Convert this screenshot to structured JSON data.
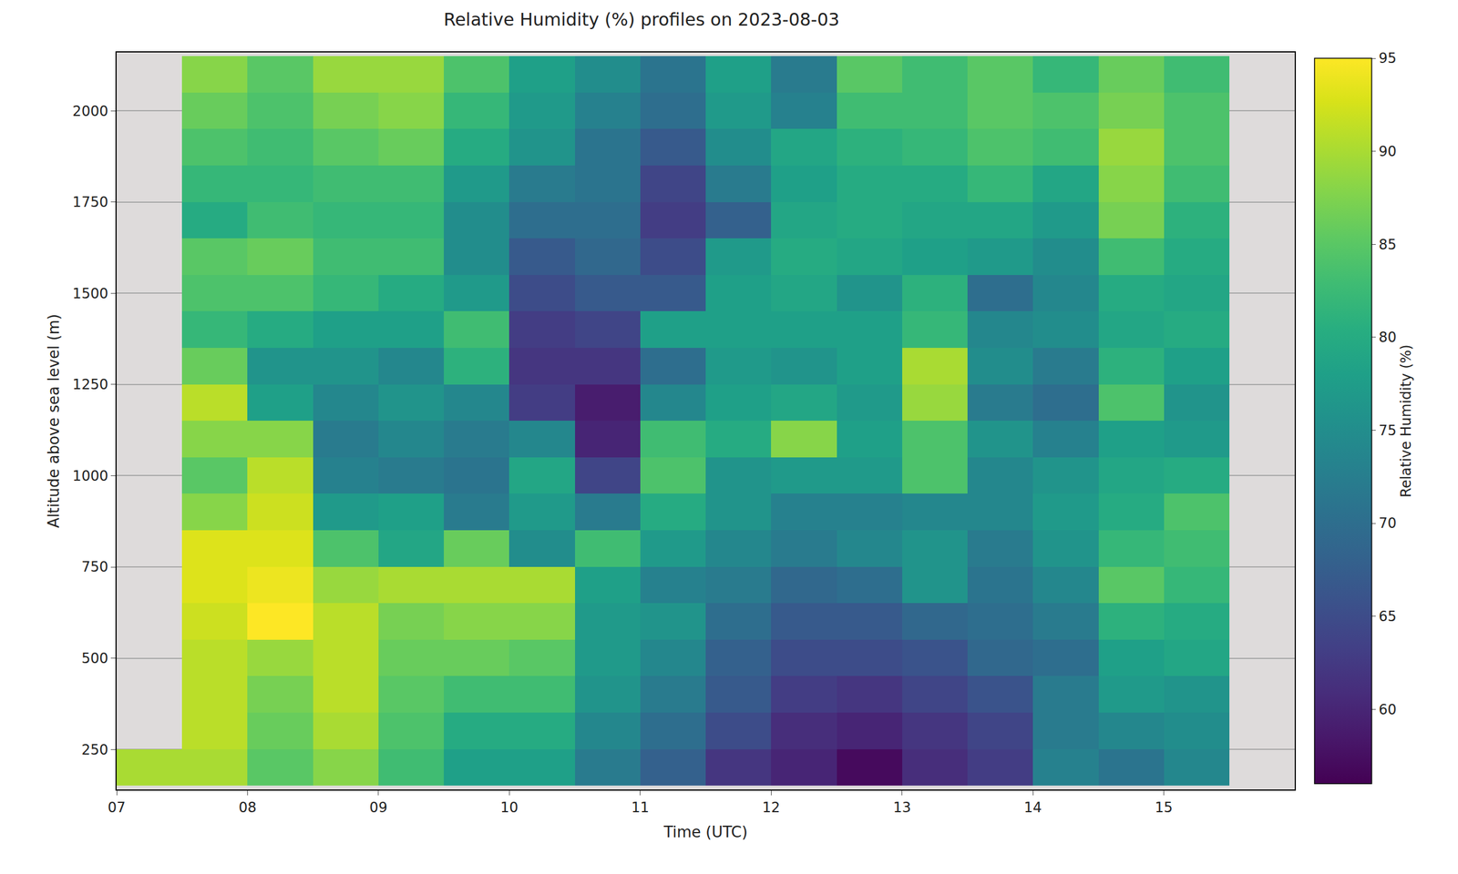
{
  "chart_data": {
    "type": "heatmap",
    "title": "Relative Humidity (%) profiles on 2023-08-03",
    "x_label": "Time (UTC)",
    "y_label": "Altitude above sea level (m)",
    "colorbar_label": "Relative Humidity (%)",
    "x": [
      7.25,
      7.75,
      8.25,
      8.75,
      9.25,
      9.75,
      10.25,
      10.75,
      11.25,
      11.75,
      12.25,
      12.75,
      13.25,
      13.75,
      14.25,
      14.75,
      15.25
    ],
    "y": [
      200,
      300,
      400,
      500,
      600,
      700,
      800,
      900,
      1000,
      1100,
      1200,
      1300,
      1400,
      1500,
      1600,
      1700,
      1800,
      1900,
      2000,
      2100
    ],
    "z": [
      [
        90,
        90,
        85,
        88,
        83,
        78,
        78,
        72,
        68,
        62,
        60,
        57,
        61,
        63,
        73,
        71,
        74
      ],
      [
        null,
        91,
        86,
        90,
        84,
        80,
        80,
        74,
        70,
        65,
        61,
        60,
        62,
        64,
        72,
        74,
        75
      ],
      [
        null,
        91,
        87,
        91,
        85,
        83,
        83,
        76,
        72,
        67,
        63,
        62,
        64,
        66,
        72,
        77,
        76
      ],
      [
        null,
        91,
        89,
        91,
        86,
        86,
        85,
        77,
        74,
        68,
        65,
        65,
        66,
        69,
        70,
        78,
        79
      ],
      [
        null,
        92,
        95,
        91,
        87,
        88,
        88,
        77,
        76,
        70,
        67,
        67,
        69,
        70,
        72,
        81,
        80
      ],
      [
        null,
        93,
        94,
        89,
        90,
        90,
        90,
        78,
        73,
        72,
        69,
        70,
        76,
        71,
        74,
        85,
        82
      ],
      [
        null,
        93,
        93,
        84,
        79,
        86,
        75,
        83,
        77,
        74,
        72,
        74,
        76,
        72,
        76,
        82,
        83
      ],
      [
        null,
        88,
        92,
        77,
        78,
        72,
        77,
        72,
        80,
        76,
        73,
        73,
        74,
        74,
        77,
        80,
        84
      ],
      [
        null,
        85,
        91,
        73,
        72,
        71,
        79,
        64,
        84,
        76,
        77,
        77,
        84,
        74,
        76,
        79,
        80
      ],
      [
        null,
        88,
        88,
        72,
        74,
        72,
        74,
        60,
        83,
        80,
        88,
        78,
        84,
        76,
        73,
        78,
        77
      ],
      [
        null,
        91,
        78,
        74,
        76,
        74,
        63,
        59,
        74,
        78,
        79,
        77,
        89,
        72,
        70,
        84,
        76
      ],
      [
        null,
        86,
        76,
        76,
        74,
        81,
        62,
        62,
        70,
        77,
        76,
        78,
        90,
        75,
        72,
        81,
        78
      ],
      [
        null,
        82,
        80,
        78,
        78,
        83,
        63,
        64,
        78,
        78,
        78,
        78,
        82,
        74,
        75,
        79,
        80
      ],
      [
        null,
        84,
        84,
        82,
        80,
        77,
        65,
        67,
        67,
        78,
        79,
        76,
        81,
        70,
        74,
        80,
        79
      ],
      [
        null,
        85,
        86,
        83,
        83,
        75,
        67,
        69,
        65,
        77,
        80,
        79,
        78,
        77,
        75,
        83,
        80
      ],
      [
        null,
        80,
        83,
        82,
        82,
        75,
        70,
        70,
        63,
        68,
        79,
        80,
        79,
        79,
        77,
        87,
        81
      ],
      [
        null,
        82,
        82,
        83,
        83,
        77,
        72,
        71,
        64,
        72,
        78,
        80,
        80,
        82,
        79,
        88,
        83
      ],
      [
        null,
        84,
        83,
        85,
        86,
        80,
        76,
        71,
        67,
        75,
        79,
        81,
        82,
        84,
        83,
        89,
        84
      ],
      [
        null,
        86,
        84,
        87,
        88,
        82,
        77,
        73,
        70,
        77,
        73,
        83,
        83,
        85,
        84,
        87,
        84
      ],
      [
        null,
        88,
        85,
        89,
        89,
        84,
        78,
        75,
        71,
        78,
        72,
        85,
        83,
        85,
        82,
        86,
        83
      ]
    ],
    "xlim": [
      7,
      16
    ],
    "xticks": [
      {
        "value": 7,
        "label": "07"
      },
      {
        "value": 8,
        "label": "08"
      },
      {
        "value": 9,
        "label": "09"
      },
      {
        "value": 10,
        "label": "10"
      },
      {
        "value": 11,
        "label": "11"
      },
      {
        "value": 12,
        "label": "12"
      },
      {
        "value": 13,
        "label": "13"
      },
      {
        "value": 14,
        "label": "14"
      },
      {
        "value": 15,
        "label": "15"
      }
    ],
    "ylim": [
      140,
      2160
    ],
    "yticks": [
      250,
      500,
      750,
      1000,
      1250,
      1500,
      1750,
      2000
    ],
    "zlim": [
      56,
      95
    ],
    "zticks": [
      60,
      65,
      70,
      75,
      80,
      85,
      90,
      95
    ],
    "grid": true
  }
}
